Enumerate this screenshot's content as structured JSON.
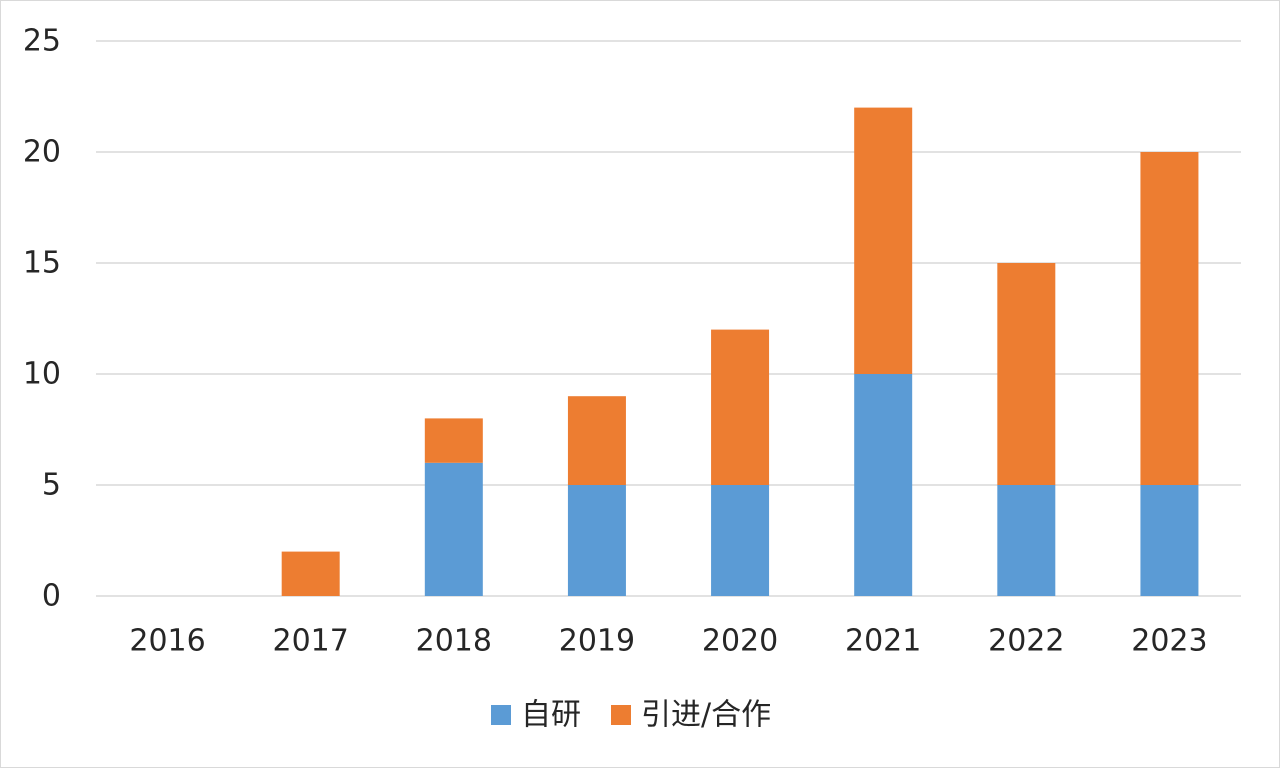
{
  "chart_data": {
    "type": "bar",
    "stacked": true,
    "categories": [
      "2016",
      "2017",
      "2018",
      "2019",
      "2020",
      "2021",
      "2022",
      "2023"
    ],
    "series": [
      {
        "name": "自研",
        "color": "#5b9bd5",
        "values": [
          0,
          0,
          6,
          5,
          5,
          10,
          5,
          5
        ]
      },
      {
        "name": "引进/合作",
        "color": "#ed7d31",
        "values": [
          0,
          2,
          2,
          4,
          7,
          12,
          10,
          15
        ]
      }
    ],
    "ylim": [
      0,
      25
    ],
    "yticks": [
      0,
      5,
      10,
      15,
      20,
      25
    ],
    "grid": true,
    "legend_position": "bottom-center"
  }
}
